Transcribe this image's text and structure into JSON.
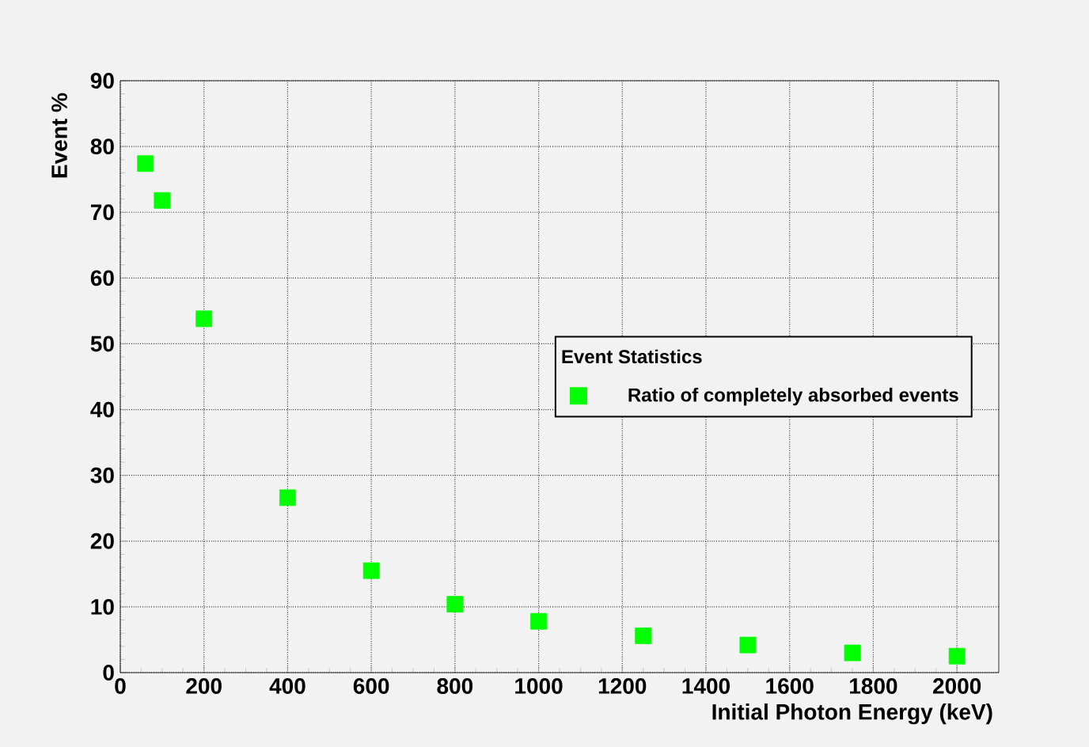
{
  "chart_data": {
    "type": "scatter",
    "xlabel": "Initial Photon Energy (keV)",
    "ylabel": "Event %",
    "legend_title": "Event Statistics",
    "x": [
      60,
      100,
      200,
      400,
      600,
      800,
      1000,
      1250,
      1500,
      1750,
      2000
    ],
    "series": [
      {
        "name": "Ratio of completely absorbed events",
        "color": "#00ff00",
        "values": [
          77.4,
          71.8,
          53.8,
          26.6,
          15.5,
          10.4,
          7.8,
          5.6,
          4.2,
          3.0,
          2.5
        ]
      }
    ],
    "xlim": [
      0,
      2100
    ],
    "ylim": [
      0,
      90
    ],
    "xticks": [
      0,
      200,
      400,
      600,
      800,
      1000,
      1200,
      1400,
      1600,
      1800,
      2000
    ],
    "yticks": [
      0,
      10,
      20,
      30,
      40,
      50,
      60,
      70,
      80,
      90
    ],
    "grid": true,
    "legend": "right",
    "marker": "square"
  }
}
